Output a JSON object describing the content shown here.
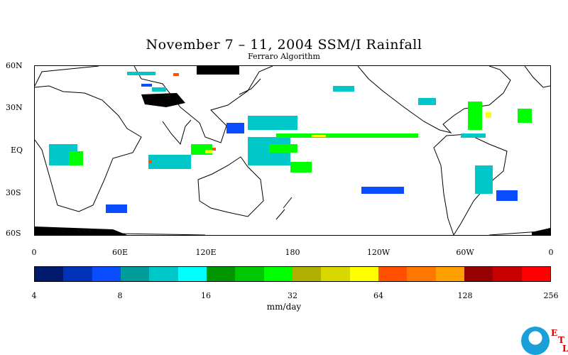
{
  "title": "November 7 – 11, 2004 SSM/I Rainfall",
  "subtitle": "Ferraro Algorithm",
  "lat_labels": [
    "60N",
    "30N",
    "EQ",
    "30S",
    "60S"
  ],
  "lon_labels": [
    "0",
    "60E",
    "120E",
    "180",
    "120W",
    "60W",
    "0"
  ],
  "colorbar": {
    "colors": [
      "#001a6e",
      "#0033b8",
      "#0a4dff",
      "#009c9c",
      "#00c8c8",
      "#00ffff",
      "#009600",
      "#00c800",
      "#00ff00",
      "#b0b000",
      "#d8d800",
      "#ffff00",
      "#ff5000",
      "#ff7800",
      "#ffa000",
      "#960000",
      "#c80000",
      "#ff0000"
    ],
    "tick_labels": [
      "4",
      "8",
      "16",
      "32",
      "64",
      "128",
      "256"
    ],
    "units": "mm/day"
  },
  "logo": {
    "name": "noaa-logo",
    "etl": [
      "E",
      "T",
      "L"
    ]
  }
}
